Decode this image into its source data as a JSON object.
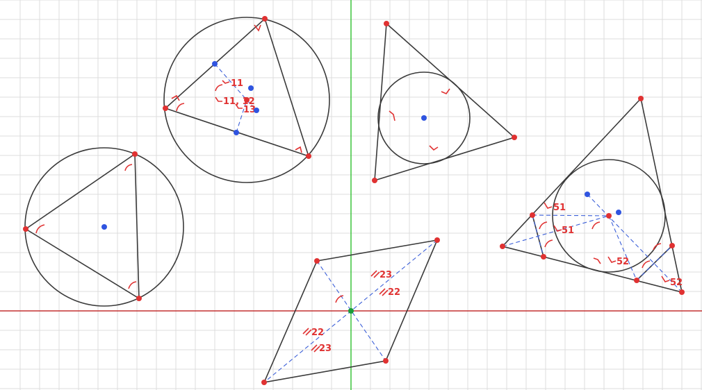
{
  "colors": {
    "vertex": "#e03232",
    "center": "#2f54e0",
    "origin": "#1a9a3a",
    "x_axis": "#c43030",
    "y_axis": "#2ec02e",
    "edge": "#3a3a3a",
    "dashed": "#3b5fd8",
    "mark": "#e03232",
    "grid": "#dcdcdc"
  },
  "labels": {
    "c2_a": "11",
    "c2_b": "11, 12",
    "c2_c": "13",
    "par_a": "23",
    "par_b": "22",
    "par_c": "22",
    "par_d": "23",
    "q_a": "51",
    "q_b": "51",
    "q_c": "52",
    "q_d": "52"
  }
}
